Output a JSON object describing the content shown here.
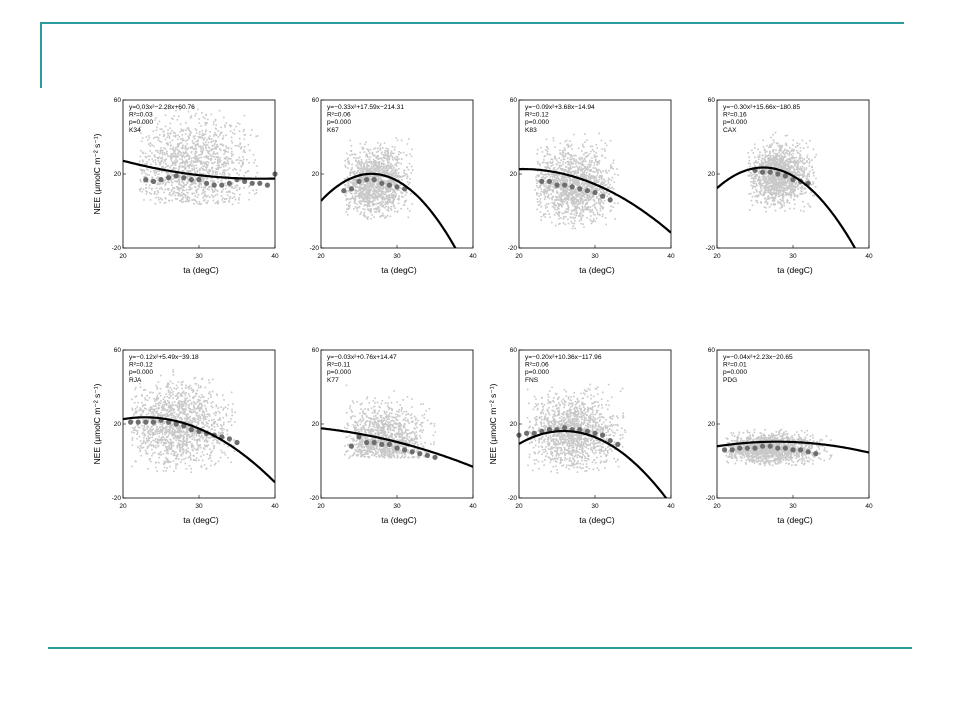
{
  "slide": {
    "accent_color": "#2a9ba0",
    "point_color": "#c8c8c8",
    "mean_color": "#6e6e6e",
    "curve_color": "#000000"
  },
  "chart_data": [
    {
      "type": "scatter",
      "site": "K34",
      "xlabel": "ta (degC)",
      "ylabel": "NEE (μmolC m⁻² s⁻¹)",
      "xlim": [
        20,
        40
      ],
      "ylim": [
        -20,
        60
      ],
      "xticks": [
        "20",
        "30",
        "40"
      ],
      "yticks": [
        "60",
        "20",
        "-20"
      ],
      "fit": {
        "a": 0.03,
        "b": -2.28,
        "c": 60.76
      },
      "annotations": [
        "y=0.03x²−2.28x+60.76",
        "R²=0.03",
        "p=0.000",
        "K34"
      ],
      "cloud": {
        "x_center": 29,
        "x_spread": 4,
        "y_center": 24,
        "y_spread": 13,
        "x_range": [
          22,
          38
        ],
        "y_range": [
          4,
          56
        ]
      },
      "bin_means": {
        "x": [
          23,
          24,
          25,
          26,
          27,
          28,
          29,
          30,
          31,
          32,
          33,
          34,
          35,
          36,
          37,
          38,
          39,
          40
        ],
        "y": [
          17,
          16,
          17,
          18,
          19,
          18,
          17,
          17,
          15,
          14,
          14,
          15,
          17,
          16,
          15,
          15,
          14,
          20
        ]
      }
    },
    {
      "type": "scatter",
      "site": "K67",
      "xlabel": "ta (degC)",
      "ylabel": "",
      "xlim": [
        20,
        40
      ],
      "ylim": [
        -20,
        60
      ],
      "xticks": [
        "20",
        "30",
        "40"
      ],
      "yticks": [
        "60",
        "20",
        "-20"
      ],
      "fit": {
        "a": -0.33,
        "b": 17.59,
        "c": -214.31
      },
      "annotations": [
        "y=−0.33x²+17.59x−214.31",
        "R²=0.06",
        "p=0.000",
        "K67"
      ],
      "cloud": {
        "x_center": 27,
        "x_spread": 2.2,
        "y_center": 16,
        "y_spread": 9,
        "x_range": [
          23,
          32
        ],
        "y_range": [
          -4,
          40
        ]
      },
      "bin_means": {
        "x": [
          23,
          24,
          25,
          26,
          27,
          28,
          29,
          30,
          31
        ],
        "y": [
          11,
          12,
          16,
          17,
          17,
          15,
          14,
          13,
          12
        ]
      }
    },
    {
      "type": "scatter",
      "site": "K83",
      "xlabel": "ta (degC)",
      "ylabel": "",
      "xlim": [
        20,
        40
      ],
      "ylim": [
        -20,
        60
      ],
      "xticks": [
        "20",
        "30",
        "40"
      ],
      "yticks": [
        "60",
        "20",
        "-20"
      ],
      "fit": {
        "a": -0.09,
        "b": 3.68,
        "c": -14.94
      },
      "annotations": [
        "y=−0.09x²+3.68x−14.94",
        "R²=0.12",
        "p=0.000",
        "K83"
      ],
      "cloud": {
        "x_center": 27,
        "x_spread": 2.8,
        "y_center": 14,
        "y_spread": 10,
        "x_range": [
          22,
          33
        ],
        "y_range": [
          -10,
          44
        ]
      },
      "bin_means": {
        "x": [
          23,
          24,
          25,
          26,
          27,
          28,
          29,
          30,
          31,
          32
        ],
        "y": [
          16,
          16,
          14,
          14,
          13,
          12,
          11,
          10,
          8,
          6
        ]
      }
    },
    {
      "type": "scatter",
      "site": "CAX",
      "xlabel": "ta (degC)",
      "ylabel": "",
      "xlim": [
        20,
        40
      ],
      "ylim": [
        -20,
        60
      ],
      "xticks": [
        "20",
        "30",
        "40"
      ],
      "yticks": [
        "60",
        "20",
        "-20"
      ],
      "fit": {
        "a": -0.3,
        "b": 15.66,
        "c": -180.85
      },
      "annotations": [
        "y=−0.30x²+15.66x−180.85",
        "R²=0.16",
        "p=0.000",
        "CAX"
      ],
      "cloud": {
        "x_center": 28,
        "x_spread": 2,
        "y_center": 20,
        "y_spread": 8,
        "x_range": [
          24,
          33
        ],
        "y_range": [
          0,
          46
        ]
      },
      "bin_means": {
        "x": [
          25,
          26,
          27,
          28,
          29,
          30,
          31,
          32
        ],
        "y": [
          22,
          21,
          21,
          20,
          19,
          17,
          16,
          15
        ]
      }
    },
    {
      "type": "scatter",
      "site": "RJA",
      "xlabel": "ta (degC)",
      "ylabel": "NEE (μmolC m⁻² s⁻¹)",
      "xlim": [
        20,
        40
      ],
      "ylim": [
        -20,
        60
      ],
      "xticks": [
        "20",
        "30",
        "40"
      ],
      "yticks": [
        "60",
        "20",
        "-20"
      ],
      "fit": {
        "a": -0.12,
        "b": 5.49,
        "c": -39.18
      },
      "annotations": [
        "y=−0.12x²+5.49x−39.18",
        "R²=0.12",
        "p=0.000",
        "RJA"
      ],
      "cloud": {
        "x_center": 27,
        "x_spread": 3.2,
        "y_center": 20,
        "y_spread": 11,
        "x_range": [
          21,
          35
        ],
        "y_range": [
          -6,
          50
        ]
      },
      "bin_means": {
        "x": [
          21,
          22,
          23,
          24,
          25,
          26,
          27,
          28,
          29,
          30,
          31,
          32,
          33,
          34,
          35
        ],
        "y": [
          21,
          21,
          21,
          21,
          22,
          21,
          20,
          19,
          17,
          16,
          15,
          14,
          13,
          12,
          10
        ]
      }
    },
    {
      "type": "scatter",
      "site": "K77",
      "xlabel": "ta (degC)",
      "ylabel": "",
      "xlim": [
        20,
        40
      ],
      "ylim": [
        -20,
        60
      ],
      "xticks": [
        "20",
        "30",
        "40"
      ],
      "yticks": [
        "60",
        "20",
        "-20"
      ],
      "fit": {
        "a": -0.03,
        "b": 0.76,
        "c": 14.47
      },
      "annotations": [
        "y=−0.03x²+0.76x+14.47",
        "R²=0.11",
        "p=0.000",
        "K77"
      ],
      "cloud": {
        "x_center": 28,
        "x_spread": 2.8,
        "y_center": 10,
        "y_spread": 10,
        "x_range": [
          23,
          35
        ],
        "y_range": [
          2,
          42
        ]
      },
      "bin_means": {
        "x": [
          24,
          25,
          26,
          27,
          28,
          29,
          30,
          31,
          32,
          33,
          34,
          35
        ],
        "y": [
          8,
          13,
          10,
          10,
          9,
          9,
          7,
          6,
          5,
          4,
          3,
          2
        ]
      }
    },
    {
      "type": "scatter",
      "site": "FNS",
      "xlabel": "ta (degC)",
      "ylabel": "NEE (μmolC m⁻² s⁻¹)",
      "xlim": [
        20,
        40
      ],
      "ylim": [
        -20,
        60
      ],
      "xticks": [
        "20",
        "30",
        "40"
      ],
      "yticks": [
        "60",
        "20",
        "-20"
      ],
      "fit": {
        "a": -0.2,
        "b": 10.36,
        "c": -117.96
      },
      "annotations": [
        "y=−0.20x²+10.36x−117.96",
        "R²=0.06",
        "p=0.000",
        "FNS"
      ],
      "cloud": {
        "x_center": 27,
        "x_spread": 3,
        "y_center": 16,
        "y_spread": 10,
        "x_range": [
          21,
          34
        ],
        "y_range": [
          -6,
          42
        ]
      },
      "bin_means": {
        "x": [
          20,
          21,
          22,
          23,
          24,
          25,
          26,
          27,
          28,
          29,
          30,
          31,
          32,
          33
        ],
        "y": [
          14,
          15,
          15,
          16,
          17,
          17,
          18,
          17,
          17,
          16,
          15,
          14,
          11,
          9
        ]
      }
    },
    {
      "type": "scatter",
      "site": "PDG",
      "xlabel": "ta (degC)",
      "ylabel": "",
      "xlim": [
        20,
        40
      ],
      "ylim": [
        -20,
        60
      ],
      "xticks": [
        "20",
        "30",
        "40"
      ],
      "yticks": [
        "60",
        "20",
        "-20"
      ],
      "fit": {
        "a": -0.04,
        "b": 2.23,
        "c": -20.65
      },
      "annotations": [
        "y=−0.04x²+2.23x−20.65",
        "R²=0.01",
        "p=0.000",
        "PDG"
      ],
      "cloud": {
        "x_center": 27,
        "x_spread": 3,
        "y_center": 7,
        "y_spread": 4,
        "x_range": [
          21,
          35
        ],
        "y_range": [
          -2,
          18
        ]
      },
      "bin_means": {
        "x": [
          21,
          22,
          23,
          24,
          25,
          26,
          27,
          28,
          29,
          30,
          31,
          32,
          33
        ],
        "y": [
          6,
          6,
          7,
          7,
          7,
          8,
          8,
          7,
          7,
          6,
          6,
          5,
          4
        ]
      }
    }
  ]
}
